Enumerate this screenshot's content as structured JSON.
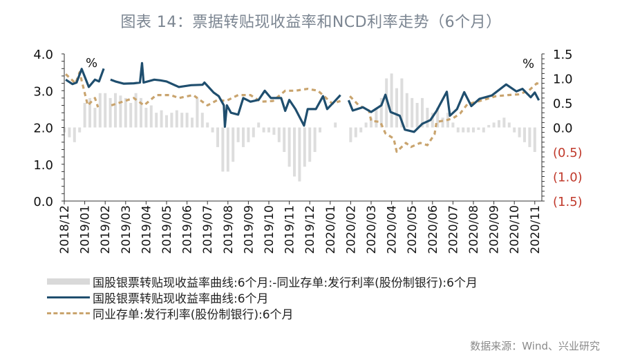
{
  "title": "图表 14：票据转贴现收益率和NCD利率走势（6个月）",
  "source": "数据来源：Wind、兴业研究",
  "chart_data": {
    "type": "line",
    "title": "图表 14：票据转贴现收益率和NCD利率走势（6个月）",
    "x_unit": "month index from 2018/12",
    "x_tick_labels": [
      "2018/12",
      "2019/01",
      "2019/02",
      "2019/03",
      "2019/04",
      "2019/05",
      "2019/06",
      "2019/07",
      "2019/08",
      "2019/09",
      "2019/10",
      "2019/11",
      "2019/12",
      "2020/01",
      "2020/02",
      "2020/03",
      "2020/04",
      "2020/05",
      "2020/06",
      "2020/07",
      "2020/08",
      "2020/09",
      "2020/10",
      "2020/11"
    ],
    "y_left": {
      "label": "%",
      "ylim": [
        0,
        4
      ],
      "ticks": [
        "0.0",
        "1.0",
        "2.0",
        "3.0",
        "4.0"
      ]
    },
    "y_right": {
      "label": "%",
      "ylim": [
        -1.5,
        1.5
      ],
      "ticks": [
        "(1.5)",
        "(1.0)",
        "(0.5)",
        "0.0",
        "0.5",
        "1.0",
        "1.5"
      ],
      "negative_color": "#c0392b"
    },
    "legend": [
      "国股银票转贴现收益率曲线:6个月:-同业存单:发行利率(股份制银行):6个月",
      "国股银票转贴现收益率曲线:6个月",
      "同业存单:发行利率(股份制银行):6个月"
    ],
    "legend_position": "bottom-left",
    "colors": {
      "spread": "#d9d9d9",
      "discount": "#1f4e6e",
      "ncd": "#c9a46e"
    },
    "series": [
      {
        "name": "国股银票转贴现收益率曲线:6个月",
        "axis": "left",
        "style": "solid",
        "segments": [
          [
            [
              0.07,
              3.3
            ],
            [
              0.4,
              3.18
            ],
            [
              0.6,
              3.22
            ],
            [
              0.85,
              3.59
            ],
            [
              1.2,
              3.1
            ],
            [
              1.5,
              3.3
            ],
            [
              1.7,
              3.25
            ],
            [
              1.93,
              3.6
            ]
          ],
          [
            [
              2.26,
              3.3
            ],
            [
              2.5,
              3.25
            ],
            [
              2.9,
              3.19
            ],
            [
              3.4,
              3.2
            ],
            [
              3.7,
              3.22
            ],
            [
              3.8,
              3.75
            ],
            [
              3.88,
              3.22
            ],
            [
              4.4,
              3.3
            ],
            [
              4.7,
              3.28
            ],
            [
              5.0,
              3.25
            ],
            [
              5.6,
              3.1
            ],
            [
              6.2,
              3.15
            ],
            [
              6.76,
              3.16
            ],
            [
              6.85,
              3.22
            ],
            [
              7.3,
              2.95
            ],
            [
              7.55,
              2.85
            ],
            [
              7.8,
              2.6
            ],
            [
              7.85,
              2.02
            ],
            [
              7.95,
              2.6
            ],
            [
              8.15,
              2.4
            ],
            [
              8.5,
              2.35
            ],
            [
              8.75,
              2.8
            ],
            [
              9.1,
              2.7
            ],
            [
              9.5,
              2.75
            ],
            [
              9.8,
              3.0
            ],
            [
              10.1,
              2.8
            ],
            [
              10.6,
              2.8
            ],
            [
              10.8,
              2.45
            ],
            [
              11.0,
              2.75
            ],
            [
              11.3,
              2.5
            ],
            [
              11.72,
              2.05
            ],
            [
              11.9,
              2.5
            ],
            [
              12.3,
              2.5
            ],
            [
              12.65,
              2.85
            ],
            [
              12.85,
              2.5
            ],
            [
              13.2,
              2.7
            ],
            [
              13.5,
              2.88
            ]
          ],
          [
            [
              13.9,
              2.74
            ],
            [
              14.1,
              2.46
            ],
            [
              14.6,
              2.55
            ],
            [
              15.0,
              2.42
            ],
            [
              15.5,
              2.6
            ],
            [
              15.7,
              2.89
            ],
            [
              15.95,
              2.42
            ],
            [
              16.4,
              2.32
            ],
            [
              16.65,
              1.94
            ],
            [
              17.1,
              1.88
            ],
            [
              17.5,
              2.1
            ],
            [
              17.9,
              2.2
            ],
            [
              18.2,
              2.45
            ],
            [
              18.7,
              2.97
            ],
            [
              18.85,
              2.32
            ],
            [
              19.2,
              2.5
            ],
            [
              19.55,
              2.96
            ],
            [
              19.9,
              2.58
            ],
            [
              20.3,
              2.78
            ],
            [
              20.9,
              2.87
            ],
            [
              21.6,
              3.17
            ],
            [
              22.1,
              2.98
            ],
            [
              22.4,
              3.05
            ],
            [
              22.8,
              2.82
            ],
            [
              23.0,
              2.95
            ],
            [
              23.2,
              2.74
            ]
          ]
        ]
      },
      {
        "name": "同业存单:发行利率(股份制银行):6个月",
        "axis": "left",
        "style": "dashed",
        "segments": [
          [
            [
              0.07,
              3.45
            ],
            [
              0.55,
              3.2
            ],
            [
              0.75,
              3.5
            ],
            [
              1.15,
              2.6
            ],
            [
              1.5,
              2.8
            ],
            [
              1.65,
              2.55
            ]
          ],
          [
            [
              2.3,
              2.6
            ],
            [
              3.4,
              2.8
            ],
            [
              3.9,
              2.6
            ],
            [
              4.5,
              2.88
            ],
            [
              5.2,
              2.88
            ],
            [
              5.6,
              2.8
            ],
            [
              6.3,
              2.88
            ],
            [
              7.0,
              2.6
            ],
            [
              7.5,
              2.75
            ],
            [
              7.9,
              2.72
            ],
            [
              8.5,
              2.88
            ],
            [
              9.1,
              2.88
            ],
            [
              9.6,
              2.7
            ],
            [
              10.2,
              2.72
            ],
            [
              10.8,
              3.0
            ],
            [
              11.3,
              3.0
            ],
            [
              11.9,
              3.05
            ],
            [
              12.4,
              3.0
            ],
            [
              12.6,
              2.9
            ],
            [
              13.1,
              2.65
            ],
            [
              13.5,
              2.72
            ]
          ],
          [
            [
              13.96,
              2.85
            ],
            [
              14.4,
              2.6
            ],
            [
              14.9,
              2.46
            ],
            [
              15.0,
              2.18
            ],
            [
              15.45,
              2.15
            ],
            [
              15.7,
              1.84
            ],
            [
              16.1,
              1.7
            ],
            [
              16.25,
              1.34
            ],
            [
              16.7,
              1.58
            ],
            [
              16.95,
              1.47
            ],
            [
              17.4,
              1.58
            ],
            [
              17.75,
              1.52
            ],
            [
              18.1,
              1.82
            ],
            [
              18.2,
              2.15
            ],
            [
              18.7,
              2.2
            ],
            [
              19.0,
              2.25
            ],
            [
              19.35,
              2.38
            ],
            [
              19.7,
              2.63
            ],
            [
              20.5,
              2.75
            ],
            [
              21.1,
              2.85
            ],
            [
              21.7,
              2.88
            ],
            [
              22.2,
              2.9
            ],
            [
              22.7,
              3.0
            ],
            [
              23.1,
              3.2
            ],
            [
              23.25,
              3.17
            ]
          ]
        ]
      },
      {
        "name": "国股银票转贴现收益率曲线:6个月:-同业存单:发行利率(股份制银行):6个月",
        "axis": "right",
        "style": "bar",
        "x_start": 0,
        "x_step": 0.25,
        "values": [
          -0.1,
          -0.2,
          -0.3,
          -0.1,
          0.5,
          0.6,
          0.4,
          0.7,
          0.7,
          0.6,
          0.7,
          0.65,
          0.6,
          0.5,
          0.7,
          0.6,
          0.4,
          0.45,
          0.3,
          0.35,
          0.25,
          0.3,
          0.35,
          0.3,
          0.3,
          0.2,
          0.6,
          0.3,
          0.1,
          -0.1,
          -0.4,
          -0.9,
          -0.9,
          -0.7,
          -0.3,
          -0.4,
          -0.3,
          -0.2,
          0.1,
          -0.1,
          -0.1,
          -0.15,
          -0.3,
          -0.5,
          -0.8,
          -1.0,
          -1.1,
          -0.8,
          -0.7,
          -0.5,
          -0.1,
          null,
          null,
          0.1,
          null,
          null,
          -0.3,
          -0.2,
          -0.1,
          0.1,
          0.2,
          0.4,
          0.6,
          1.0,
          1.1,
          0.8,
          1.0,
          0.7,
          0.6,
          0.5,
          0.6,
          0.4,
          0.3,
          0.4,
          0.2,
          0.3,
          0.1,
          -0.1,
          -0.1,
          -0.1,
          -0.1,
          -0.05,
          -0.1,
          0.05,
          0.1,
          0.15,
          0.2,
          0.1,
          -0.1,
          -0.2,
          -0.3,
          -0.4,
          -0.5
        ]
      }
    ]
  }
}
